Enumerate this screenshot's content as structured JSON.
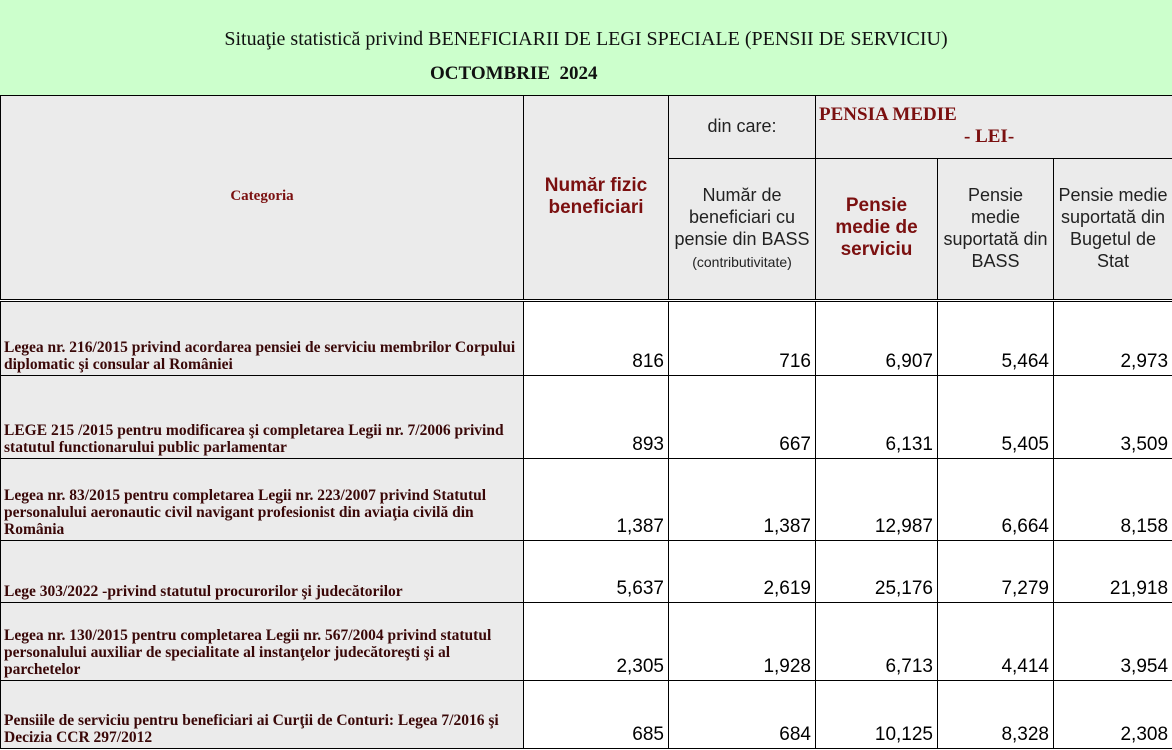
{
  "header": {
    "title": "Situaţie statistică privind BENEFICIARII DE LEGI SPECIALE (PENSII DE SERVICIU)",
    "period": "OCTOMBRIE  2024"
  },
  "table": {
    "columns": {
      "category": "Categoria",
      "beneficiaries": "Număr fizic beneficiari",
      "of_which": "din care:",
      "bass_beneficiaries": "Număr de beneficiari cu pensie din BASS",
      "bass_note": "(contributivitate)",
      "average_pension": "PENSIA MEDIE",
      "currency": "- LEI-",
      "service_pension": "Pensie medie de serviciu",
      "bass_pension": "Pensie medie suportată din BASS",
      "state_pension": "Pensie medie suportată din Bugetul de Stat"
    },
    "rows": [
      [
        "Legea nr. 216/2015 privind acordarea pensiei de serviciu membrilor Corpului diplomatic şi consular al României",
        "816",
        "716",
        "6,907",
        "5,464",
        "2,973"
      ],
      [
        "LEGE 215 /2015  pentru modificarea şi completarea Legii nr. 7/2006 privind statutul functionarului public parlamentar",
        "893",
        "667",
        "6,131",
        "5,405",
        "3,509"
      ],
      [
        " Legea nr. 83/2015 pentru completarea Legii nr. 223/2007 privind Statutul personalului aeronautic civil navigant profesionist din aviaţia civilă din România",
        "1,387",
        "1,387",
        "12,987",
        "6,664",
        "8,158"
      ],
      [
        "Lege 303/2022 -privind statutul procurorilor şi judecătorilor",
        "5,637",
        "2,619",
        "25,176",
        "7,279",
        "21,918"
      ],
      [
        "Legea nr. 130/2015 pentru completarea Legii nr. 567/2004 privind statutul personalului auxiliar de specialitate al instanţelor judecătoreşti şi al parchetelor",
        "2,305",
        "1,928",
        "6,713",
        "4,414",
        "3,954"
      ],
      [
        "Pensiile de serviciu pentru beneficiari ai Curţii de Conturi: Legea 7/2016 şi  Decizia CCR 297/2012",
        "685",
        "684",
        "10,125",
        "8,328",
        "2,308"
      ]
    ]
  }
}
